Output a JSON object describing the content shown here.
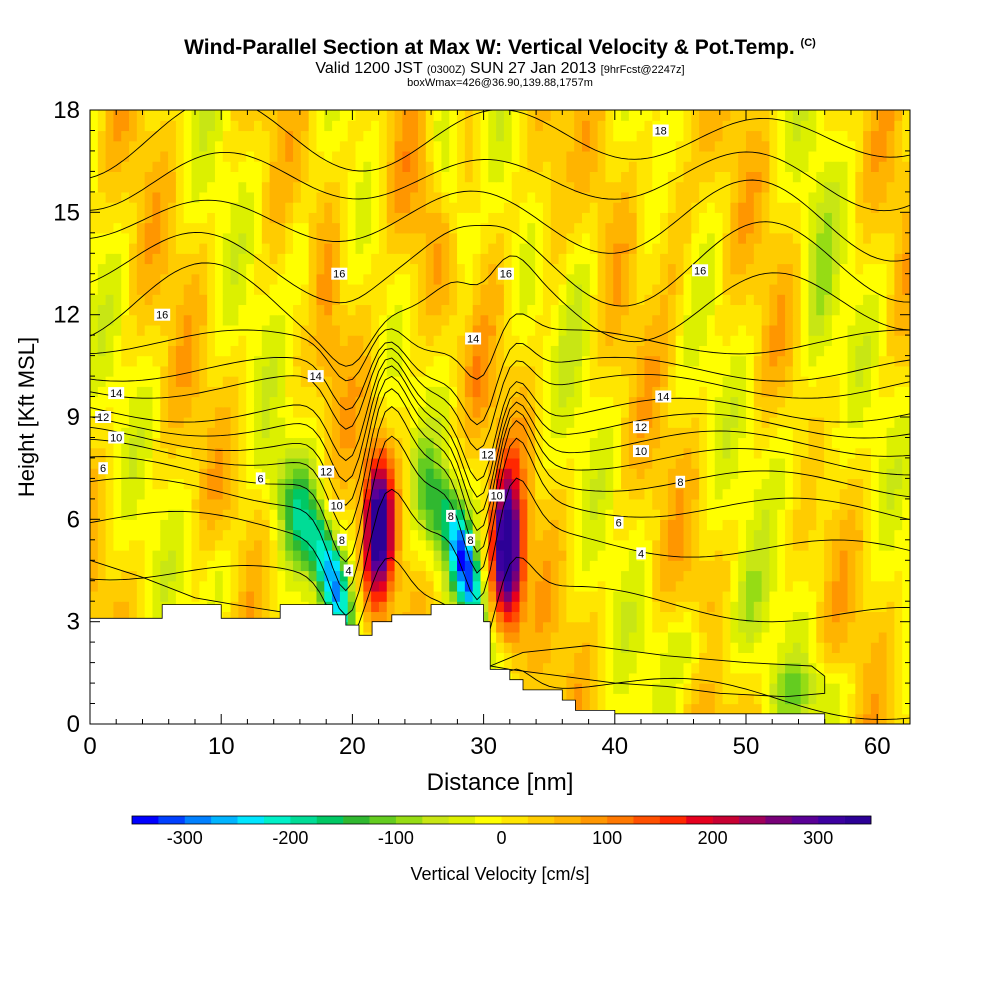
{
  "title": "Wind-Parallel Section at Max W: Vertical Velocity & Pot.Temp.",
  "title_mark": "(C)",
  "subtitle_parts": [
    "Valid 1200 JST",
    "(0300Z)",
    "SUN 27 Jan 2013",
    "[9hrFcst@2247z]"
  ],
  "subtitle2": "boxWmax=426@36.90,139.88,1757m",
  "chart_data": {
    "type": "heatmap",
    "xlabel": "Distance [nm]",
    "ylabel": "Height [Kft MSL]",
    "xlim": [
      0,
      62.5
    ],
    "ylim": [
      0,
      18
    ],
    "xticks": [
      0,
      10,
      20,
      30,
      40,
      50,
      60
    ],
    "yticks": [
      0,
      3,
      6,
      9,
      12,
      15,
      18
    ],
    "colorbar": {
      "label": "Vertical Velocity [cm/s]",
      "ticks": [
        -300,
        -200,
        -100,
        0,
        100,
        200,
        300
      ],
      "min": -350,
      "max": 350,
      "step": 25,
      "colors": [
        "#0000ff",
        "#0040ff",
        "#0080ff",
        "#00b4ff",
        "#00e6ff",
        "#00f0c8",
        "#00dc96",
        "#00c864",
        "#30b830",
        "#64cc20",
        "#96dc14",
        "#c8e614",
        "#dcf000",
        "#ffff00",
        "#ffe600",
        "#ffcc00",
        "#ffb400",
        "#ff9600",
        "#ff7800",
        "#ff5000",
        "#ff2800",
        "#e6001e",
        "#c80032",
        "#a0005a",
        "#780078",
        "#5a0096",
        "#3c00a0",
        "#2c0096"
      ]
    },
    "velocity_features": [
      {
        "kind": "downdraft",
        "x": 19.5,
        "y": 4.0,
        "peak": -230
      },
      {
        "kind": "updraft",
        "x": 22.0,
        "y": 5.8,
        "peak": 300
      },
      {
        "kind": "downdraft",
        "x": 29.5,
        "y": 4.2,
        "peak": -270
      },
      {
        "kind": "updraft",
        "x": 31.8,
        "y": 5.0,
        "peak": 330
      }
    ],
    "terrain": [
      [
        0,
        3.1
      ],
      [
        5.5,
        3.1
      ],
      [
        5.5,
        3.5
      ],
      [
        10,
        3.5
      ],
      [
        10,
        3.1
      ],
      [
        14.5,
        3.1
      ],
      [
        14.5,
        3.5
      ],
      [
        18.5,
        3.5
      ],
      [
        18.5,
        3.2
      ],
      [
        19.5,
        3.2
      ],
      [
        19.5,
        2.9
      ],
      [
        20.5,
        2.9
      ],
      [
        20.5,
        2.6
      ],
      [
        21.5,
        2.6
      ],
      [
        21.5,
        3.0
      ],
      [
        23,
        3.0
      ],
      [
        23,
        3.2
      ],
      [
        26,
        3.2
      ],
      [
        26,
        3.5
      ],
      [
        30,
        3.5
      ],
      [
        30,
        3.0
      ],
      [
        30.5,
        3.0
      ],
      [
        30.5,
        1.6
      ],
      [
        32,
        1.6
      ],
      [
        32,
        1.3
      ],
      [
        33,
        1.3
      ],
      [
        33,
        1.0
      ],
      [
        36,
        1.0
      ],
      [
        36,
        0.7
      ],
      [
        37,
        0.7
      ],
      [
        37,
        0.4
      ],
      [
        40,
        0.4
      ],
      [
        40,
        0.3
      ],
      [
        56,
        0.3
      ],
      [
        56,
        0
      ],
      [
        0,
        0
      ]
    ],
    "theta_labels": [
      {
        "text": "18",
        "x": 43.5,
        "y": 17.4
      },
      {
        "text": "16",
        "x": 19.0,
        "y": 13.2
      },
      {
        "text": "16",
        "x": 31.7,
        "y": 13.2
      },
      {
        "text": "16",
        "x": 46.5,
        "y": 13.3
      },
      {
        "text": "16",
        "x": 5.5,
        "y": 12.0
      },
      {
        "text": "14",
        "x": 29.2,
        "y": 11.3
      },
      {
        "text": "14",
        "x": 17.2,
        "y": 10.2
      },
      {
        "text": "14",
        "x": 2.0,
        "y": 9.7
      },
      {
        "text": "14",
        "x": 43.7,
        "y": 9.6
      },
      {
        "text": "12",
        "x": 1.0,
        "y": 9.0
      },
      {
        "text": "12",
        "x": 42.0,
        "y": 8.7
      },
      {
        "text": "12",
        "x": 18.0,
        "y": 7.4
      },
      {
        "text": "12",
        "x": 30.3,
        "y": 7.9
      },
      {
        "text": "10",
        "x": 2.0,
        "y": 8.4
      },
      {
        "text": "10",
        "x": 42.0,
        "y": 8.0
      },
      {
        "text": "10",
        "x": 18.8,
        "y": 6.4
      },
      {
        "text": "10",
        "x": 31.0,
        "y": 6.7
      },
      {
        "text": "8",
        "x": 45.0,
        "y": 7.1
      },
      {
        "text": "8",
        "x": 19.2,
        "y": 5.4
      },
      {
        "text": "8",
        "x": 27.5,
        "y": 6.1
      },
      {
        "text": "8",
        "x": 29.0,
        "y": 5.4
      },
      {
        "text": "6",
        "x": 1.0,
        "y": 7.5
      },
      {
        "text": "6",
        "x": 13.0,
        "y": 7.2
      },
      {
        "text": "6",
        "x": 40.3,
        "y": 5.9
      },
      {
        "text": "4",
        "x": 19.7,
        "y": 4.5
      },
      {
        "text": "4",
        "x": 42.0,
        "y": 5.0
      }
    ]
  }
}
